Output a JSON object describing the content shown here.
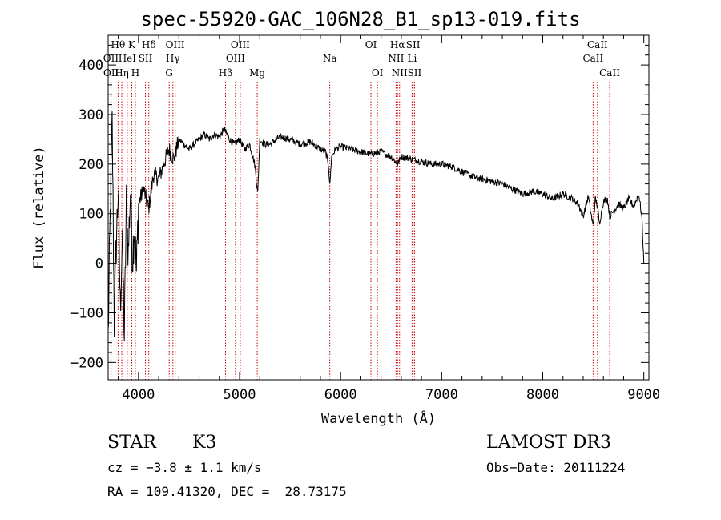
{
  "chart_data": {
    "type": "line",
    "title": "spec-55920-GAC_106N28_B1_sp13-019.fits",
    "xlabel": "Wavelength (Å)",
    "ylabel": "Flux (relative)",
    "xlim": [
      3700,
      9050
    ],
    "ylim": [
      -235,
      460
    ],
    "x_ticks": [
      4000,
      5000,
      6000,
      7000,
      8000,
      9000
    ],
    "x_tick_labels": [
      "4000",
      "5000",
      "6000",
      "7000",
      "8000",
      "9000"
    ],
    "y_ticks": [
      -200,
      -100,
      0,
      100,
      200,
      300,
      400
    ],
    "y_tick_labels": [
      "−200",
      "−100",
      "0",
      "100",
      "200",
      "300",
      "400"
    ],
    "line_color": "#000000",
    "marker_color": "#cc0000",
    "series": [
      {
        "name": "spectrum",
        "x": [
          3700,
          3720,
          3740,
          3760,
          3780,
          3800,
          3820,
          3840,
          3860,
          3880,
          3900,
          3920,
          3940,
          3960,
          3980,
          4000,
          4050,
          4100,
          4150,
          4200,
          4250,
          4300,
          4350,
          4400,
          4450,
          4500,
          4550,
          4600,
          4650,
          4700,
          4750,
          4800,
          4850,
          4900,
          4950,
          5000,
          5050,
          5100,
          5150,
          5180,
          5200,
          5250,
          5300,
          5400,
          5500,
          5600,
          5700,
          5800,
          5850,
          5880,
          5893,
          5910,
          5950,
          6000,
          6100,
          6200,
          6300,
          6400,
          6500,
          6563,
          6600,
          6700,
          6800,
          6900,
          7000,
          7100,
          7200,
          7300,
          7400,
          7500,
          7600,
          7700,
          7800,
          7900,
          8000,
          8100,
          8200,
          8300,
          8350,
          8400,
          8450,
          8498,
          8520,
          8542,
          8560,
          8600,
          8640,
          8662,
          8700,
          8750,
          8800,
          8850,
          8900,
          8950,
          8980,
          9000
        ],
        "y": [
          -150,
          90,
          280,
          -120,
          40,
          150,
          -90,
          60,
          -150,
          120,
          20,
          150,
          10,
          80,
          -20,
          120,
          150,
          110,
          180,
          170,
          200,
          230,
          210,
          250,
          240,
          230,
          240,
          250,
          260,
          250,
          260,
          255,
          270,
          250,
          240,
          250,
          230,
          240,
          200,
          140,
          250,
          240,
          240,
          255,
          250,
          240,
          245,
          230,
          225,
          200,
          155,
          215,
          230,
          235,
          230,
          225,
          220,
          225,
          215,
          200,
          215,
          210,
          205,
          200,
          200,
          195,
          185,
          175,
          170,
          165,
          160,
          150,
          140,
          145,
          140,
          130,
          140,
          130,
          120,
          95,
          135,
          75,
          130,
          115,
          80,
          125,
          130,
          95,
          105,
          120,
          110,
          130,
          115,
          140,
          95,
          0
        ]
      }
    ],
    "spectral_lines": [
      {
        "label": "Hθ",
        "x": 3798,
        "row": 0
      },
      {
        "label": "OII",
        "x": 3727,
        "row": 1
      },
      {
        "label": "OII",
        "x": 3729,
        "row": 2
      },
      {
        "label": "Hη",
        "x": 3835,
        "row": 2
      },
      {
        "label": "K",
        "x": 3934,
        "row": 0
      },
      {
        "label": "HeI",
        "x": 3889,
        "row": 1
      },
      {
        "label": "H",
        "x": 3969,
        "row": 2
      },
      {
        "label": "SII",
        "x": 4069,
        "row": 1
      },
      {
        "label": "Hδ",
        "x": 4102,
        "row": 0
      },
      {
        "label": "OIII",
        "x": 4363,
        "row": 0
      },
      {
        "label": "Hγ",
        "x": 4340,
        "row": 1
      },
      {
        "label": "G",
        "x": 4304,
        "row": 2
      },
      {
        "label": "Hβ",
        "x": 4861,
        "row": 2
      },
      {
        "label": "OIII",
        "x": 5007,
        "row": 0
      },
      {
        "label": "OIII",
        "x": 4959,
        "row": 1
      },
      {
        "label": "Mg",
        "x": 5175,
        "row": 2
      },
      {
        "label": "Na",
        "x": 5893,
        "row": 1
      },
      {
        "label": "OI",
        "x": 6300,
        "row": 0
      },
      {
        "label": "OI",
        "x": 6364,
        "row": 2
      },
      {
        "label": "Hα",
        "x": 6563,
        "row": 0
      },
      {
        "label": "NII",
        "x": 6548,
        "row": 1
      },
      {
        "label": "NII",
        "x": 6583,
        "row": 2
      },
      {
        "label": "SII",
        "x": 6717,
        "row": 0
      },
      {
        "label": "Li",
        "x": 6707,
        "row": 1
      },
      {
        "label": "SII",
        "x": 6731,
        "row": 2
      },
      {
        "label": "CaII",
        "x": 8542,
        "row": 0
      },
      {
        "label": "CaII",
        "x": 8498,
        "row": 1
      },
      {
        "label": "CaII",
        "x": 8662,
        "row": 2
      }
    ]
  },
  "info": {
    "object_class": "STAR",
    "subclass": "K3",
    "survey": "LAMOST DR3",
    "redshift": "cz = −3.8 ± 1.1 km/s",
    "obs_date": "Obs−Date: 20111224",
    "coordinates": "RA = 109.41320, DEC =  28.73175"
  }
}
